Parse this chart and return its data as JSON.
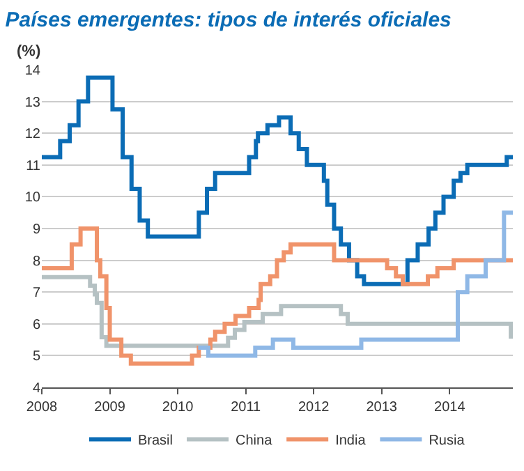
{
  "chart_data": {
    "type": "step",
    "title": "Países emergentes: tipos de interés oficiales",
    "ylabel": "(%)",
    "xlim": [
      2008,
      2014.93
    ],
    "xticks": [
      2008,
      2009,
      2010,
      2011,
      2012,
      2013,
      2014
    ],
    "ylim": [
      4,
      14
    ],
    "yticks": [
      4,
      5,
      6,
      7,
      8,
      9,
      10,
      11,
      12,
      13,
      14
    ],
    "grid": "y",
    "legend": "bottom",
    "series": [
      {
        "name": "Brasil",
        "color": "#0b6cb5",
        "x": [
          2008,
          2008.27,
          2008.41,
          2008.54,
          2008.68,
          2009.04,
          2009.19,
          2009.32,
          2009.44,
          2009.56,
          2010.31,
          2010.43,
          2010.55,
          2011.05,
          2011.15,
          2011.18,
          2011.32,
          2011.49,
          2011.66,
          2011.78,
          2011.9,
          2012.15,
          2012.2,
          2012.3,
          2012.4,
          2012.52,
          2012.64,
          2012.74,
          2013.38,
          2013.53,
          2013.69,
          2013.79,
          2013.91,
          2014.06,
          2014.16,
          2014.26,
          2014.84,
          2014.93
        ],
        "values": [
          11.25,
          11.75,
          12.25,
          13,
          13.75,
          12.75,
          11.25,
          10.25,
          9.25,
          8.75,
          9.5,
          10.25,
          10.75,
          11.25,
          11.75,
          12,
          12.25,
          12.5,
          12,
          11.5,
          11,
          10.5,
          9.75,
          9,
          8.5,
          8,
          7.5,
          7.25,
          8,
          8.5,
          9,
          9.5,
          10,
          10.5,
          10.75,
          11,
          11.25,
          11.25
        ]
      },
      {
        "name": "China",
        "color": "#b5c1c3",
        "x": [
          2008,
          2008.71,
          2008.78,
          2008.81,
          2008.88,
          2008.95,
          2010.74,
          2010.84,
          2010.98,
          2011.25,
          2011.52,
          2012.4,
          2012.5,
          2014.9,
          2014.93
        ],
        "values": [
          7.47,
          7.2,
          6.93,
          6.66,
          5.58,
          5.31,
          5.56,
          5.81,
          6.06,
          6.31,
          6.56,
          6.31,
          6,
          5.6,
          5.6
        ]
      },
      {
        "name": "India",
        "color": "#f0936a",
        "x": [
          2008,
          2008.44,
          2008.57,
          2008.81,
          2008.86,
          2008.95,
          2009,
          2009.17,
          2009.31,
          2010.21,
          2010.31,
          2010.48,
          2010.55,
          2010.69,
          2010.85,
          2011.05,
          2011.19,
          2011.22,
          2011.36,
          2011.46,
          2011.56,
          2011.66,
          2012.3,
          2013.08,
          2013.21,
          2013.31,
          2013.68,
          2013.82,
          2014.06,
          2014.93
        ],
        "values": [
          7.75,
          8.5,
          9,
          8,
          7.5,
          6.5,
          5.5,
          5,
          4.75,
          5,
          5.25,
          5.5,
          5.75,
          6,
          6.25,
          6.5,
          6.75,
          7.25,
          7.5,
          8,
          8.25,
          8.5,
          8,
          7.75,
          7.5,
          7.25,
          7.5,
          7.75,
          8,
          8
        ]
      },
      {
        "name": "Rusia",
        "color": "#8fb8e6",
        "x": [
          2010.3,
          2010.45,
          2011.14,
          2011.4,
          2011.7,
          2012.7,
          2014.12,
          2014.26,
          2014.53,
          2014.8,
          2014.9,
          2014.93
        ],
        "values": [
          5.25,
          5,
          5.25,
          5.5,
          5.25,
          5.5,
          7,
          7.5,
          8,
          9.5,
          9.5,
          9.5
        ]
      }
    ]
  }
}
